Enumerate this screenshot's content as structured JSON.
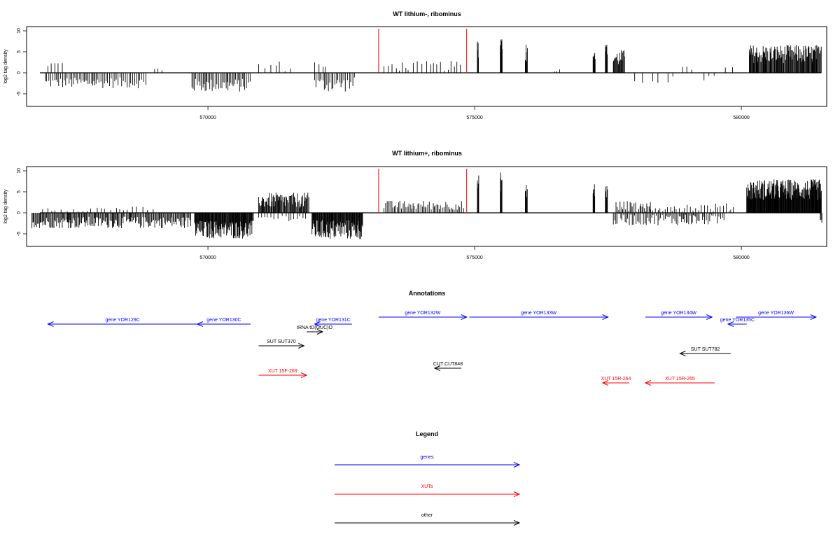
{
  "colors": {
    "gene": "#0000ff",
    "xut": "#ff0000",
    "other": "#000000",
    "marker": "#ff0000",
    "bar": "#000000"
  },
  "xaxis": {
    "range": [
      566600,
      581600
    ],
    "ticks": [
      570000,
      575000,
      580000
    ],
    "tick_labels": [
      "570000",
      "575000",
      "580000"
    ]
  },
  "chart_data": [
    {
      "type": "bar",
      "title": "WT lithium-, ribominus",
      "ylabel": "log2 tag density",
      "ylim": [
        -8,
        11
      ],
      "yticks": [
        -5,
        0,
        5,
        10
      ],
      "ytick_labels": [
        "-5",
        "0",
        "5",
        "10"
      ],
      "markers": [
        573200,
        574850
      ],
      "segments": [
        {
          "start": 566950,
          "end": 568850,
          "mean": -2.4,
          "amp": 1.3,
          "step": 30
        },
        {
          "start": 567000,
          "end": 567300,
          "mean": 2.0,
          "amp": 0.8,
          "step": 60
        },
        {
          "start": 569000,
          "end": 569200,
          "mean": 0.8,
          "amp": 0.6,
          "step": 80
        },
        {
          "start": 569700,
          "end": 570800,
          "mean": -3.0,
          "amp": 1.6,
          "step": 25
        },
        {
          "start": 570950,
          "end": 571600,
          "mean": 1.6,
          "amp": 1.3,
          "step": 90
        },
        {
          "start": 572000,
          "end": 572250,
          "mean": 2.0,
          "amp": 1.0,
          "step": 60
        },
        {
          "start": 572000,
          "end": 572750,
          "mean": -2.8,
          "amp": 1.8,
          "step": 30
        },
        {
          "start": 573300,
          "end": 574800,
          "mean": 1.6,
          "amp": 1.2,
          "step": 70
        },
        {
          "start": 575050,
          "end": 575080,
          "mean": 6.0,
          "amp": 2.5,
          "step": 8
        },
        {
          "start": 575480,
          "end": 575520,
          "mean": 7.0,
          "amp": 3.0,
          "step": 8
        },
        {
          "start": 575950,
          "end": 575990,
          "mean": 5.0,
          "amp": 2.5,
          "step": 8
        },
        {
          "start": 576500,
          "end": 576600,
          "mean": 0.6,
          "amp": 0.3,
          "step": 50
        },
        {
          "start": 577220,
          "end": 577260,
          "mean": 5.0,
          "amp": 2.0,
          "step": 8
        },
        {
          "start": 577450,
          "end": 577490,
          "mean": 5.0,
          "amp": 2.0,
          "step": 8
        },
        {
          "start": 577600,
          "end": 577820,
          "mean": 3.5,
          "amp": 2.0,
          "step": 12
        },
        {
          "start": 578000,
          "end": 578800,
          "mean": -1.5,
          "amp": 1.2,
          "step": 150
        },
        {
          "start": 578900,
          "end": 579100,
          "mean": 1.0,
          "amp": 0.5,
          "step": 100
        },
        {
          "start": 579300,
          "end": 579600,
          "mean": -1.2,
          "amp": 1.0,
          "step": 100
        },
        {
          "start": 579700,
          "end": 579900,
          "mean": 1.0,
          "amp": 0.6,
          "step": 100
        },
        {
          "start": 580150,
          "end": 581500,
          "mean": 4.5,
          "amp": 2.2,
          "step": 12
        }
      ]
    },
    {
      "type": "bar",
      "title": "WT lithium+, ribominus",
      "ylabel": "log2 tag density",
      "ylim": [
        -8,
        11
      ],
      "yticks": [
        -5,
        0,
        5,
        10
      ],
      "ytick_labels": [
        "-5",
        "0",
        "5",
        "10"
      ],
      "markers": [
        573200,
        574850
      ],
      "segments": [
        {
          "start": 566700,
          "end": 569700,
          "mean": -2.3,
          "amp": 1.4,
          "step": 18
        },
        {
          "start": 566900,
          "end": 569000,
          "mean": 0.9,
          "amp": 0.6,
          "step": 90
        },
        {
          "start": 569750,
          "end": 570850,
          "mean": -4.0,
          "amp": 2.2,
          "step": 10
        },
        {
          "start": 570950,
          "end": 571900,
          "mean": 3.0,
          "amp": 1.8,
          "step": 14
        },
        {
          "start": 570950,
          "end": 571900,
          "mean": -1.2,
          "amp": 0.8,
          "step": 60
        },
        {
          "start": 571950,
          "end": 572900,
          "mean": -4.0,
          "amp": 2.4,
          "step": 10
        },
        {
          "start": 573300,
          "end": 574800,
          "mean": 1.8,
          "amp": 1.1,
          "step": 28
        },
        {
          "start": 575050,
          "end": 575080,
          "mean": 6.5,
          "amp": 2.5,
          "step": 8
        },
        {
          "start": 575480,
          "end": 575520,
          "mean": 7.5,
          "amp": 2.5,
          "step": 8
        },
        {
          "start": 575950,
          "end": 575990,
          "mean": 5.0,
          "amp": 2.0,
          "step": 8
        },
        {
          "start": 577220,
          "end": 577260,
          "mean": 5.5,
          "amp": 2.0,
          "step": 8
        },
        {
          "start": 577450,
          "end": 577490,
          "mean": 5.0,
          "amp": 2.0,
          "step": 8
        },
        {
          "start": 577650,
          "end": 578300,
          "mean": 1.5,
          "amp": 1.5,
          "step": 25
        },
        {
          "start": 577600,
          "end": 579700,
          "mean": -1.6,
          "amp": 1.4,
          "step": 25
        },
        {
          "start": 578300,
          "end": 579900,
          "mean": 1.3,
          "amp": 1.0,
          "step": 45
        },
        {
          "start": 580100,
          "end": 581500,
          "mean": 5.5,
          "amp": 2.5,
          "step": 8
        },
        {
          "start": 581480,
          "end": 581520,
          "mean": -2.5,
          "amp": 1.0,
          "step": 20
        }
      ]
    }
  ],
  "annotations": {
    "title": "Annotations",
    "features": [
      {
        "label": "gene YOR129C",
        "type": "gene",
        "start": 567000,
        "end": 569800,
        "strand": "-",
        "row": 1
      },
      {
        "label": "gene YOR130C",
        "type": "gene",
        "start": 569800,
        "end": 570800,
        "strand": "-",
        "row": 1
      },
      {
        "label": "gene YOR131C",
        "type": "gene",
        "start": 572000,
        "end": 572700,
        "strand": "-",
        "row": 1
      },
      {
        "label": "gene YOR132W",
        "type": "gene",
        "start": 573200,
        "end": 574850,
        "strand": "+",
        "row": 0
      },
      {
        "label": "gene YOR133W",
        "type": "gene",
        "start": 574900,
        "end": 577500,
        "strand": "+",
        "row": 0
      },
      {
        "label": "gene YOR134W",
        "type": "gene",
        "start": 578200,
        "end": 579450,
        "strand": "+",
        "row": 0
      },
      {
        "label": "gene YOR135C",
        "type": "gene",
        "start": 579750,
        "end": 580100,
        "strand": "-",
        "row": 1
      },
      {
        "label": "gene YOR136W",
        "type": "gene",
        "start": 579900,
        "end": 581400,
        "strand": "+",
        "row": 0
      },
      {
        "label": "tRNA tD(GUC)O",
        "type": "other",
        "start": 571850,
        "end": 572150,
        "strand": "+",
        "row": 2
      },
      {
        "label": "SUT SUT370",
        "type": "other",
        "start": 570950,
        "end": 571800,
        "strand": "+",
        "row": 3
      },
      {
        "label": "SUT SUT782",
        "type": "other",
        "start": 578850,
        "end": 579800,
        "strand": "-",
        "row": 4
      },
      {
        "label": "CUT CUT848",
        "type": "other",
        "start": 574250,
        "end": 574750,
        "strand": "-",
        "row": 5
      },
      {
        "label": "XUT 15F-269",
        "type": "xut",
        "start": 570950,
        "end": 571850,
        "strand": "+",
        "row": 6
      },
      {
        "label": "XUT 15R-264",
        "type": "xut",
        "start": 577400,
        "end": 577900,
        "strand": "-",
        "row": 7
      },
      {
        "label": "XUT 15R-265",
        "type": "xut",
        "start": 578200,
        "end": 579500,
        "strand": "-",
        "row": 7
      }
    ]
  },
  "legend": {
    "title": "Legend",
    "items": [
      {
        "label": "genes",
        "type": "gene"
      },
      {
        "label": "XUTs",
        "type": "xut"
      },
      {
        "label": "other",
        "type": "other"
      }
    ]
  }
}
